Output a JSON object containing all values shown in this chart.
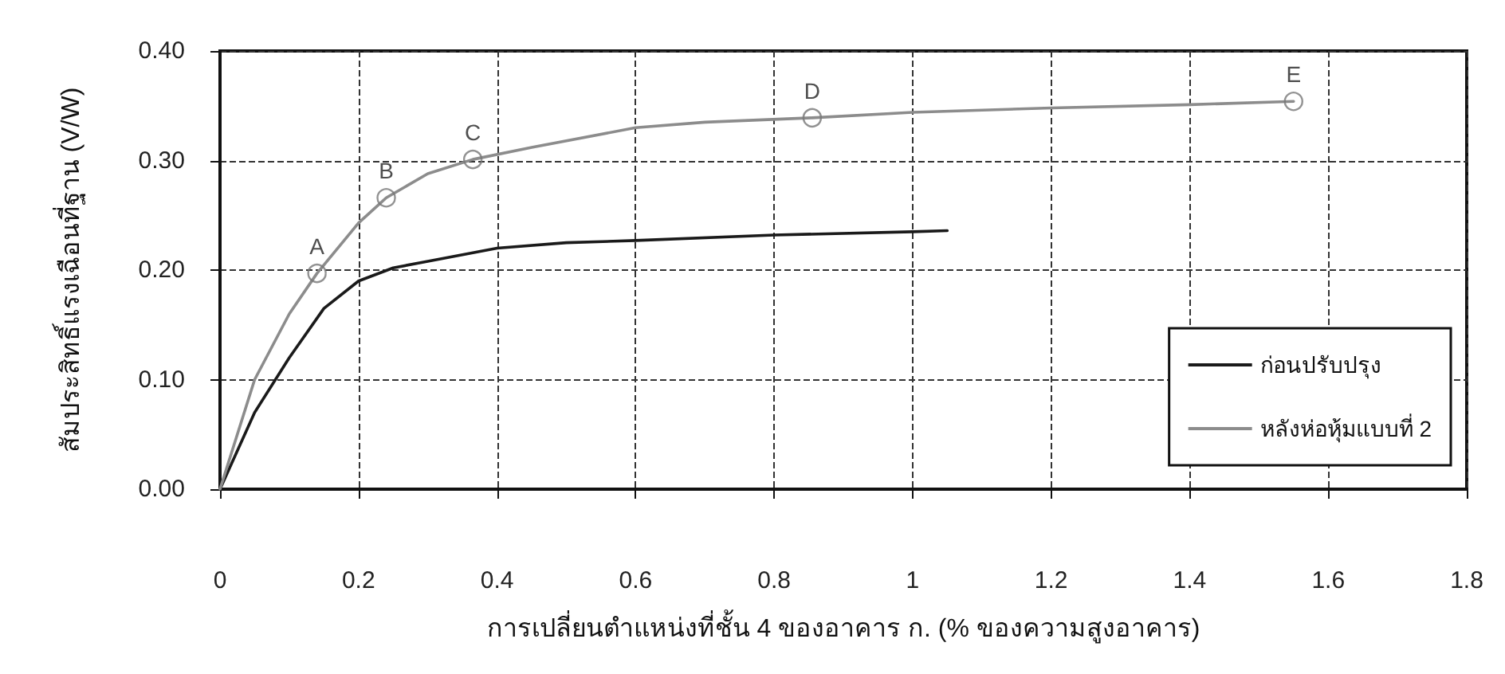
{
  "chart_data": {
    "type": "line",
    "xlabel": "การเปลี่ยนตำแหน่งที่ชั้น 4 ของอาคาร ก. (% ของความสูงอาคาร)",
    "ylabel": "สัมประสิทธิ์แรงเฉือนที่ฐาน (V/W)",
    "xlim": [
      0,
      1.8
    ],
    "xticks": [
      0,
      0.2,
      0.4,
      0.6,
      0.8,
      1,
      1.2,
      1.4,
      1.6,
      1.8
    ],
    "ylim": [
      0,
      0.4
    ],
    "yticks": [
      {
        "value": 0,
        "label": "0.00"
      },
      {
        "value": 0.1,
        "label": "0.10"
      },
      {
        "value": 0.2,
        "label": "0.20"
      },
      {
        "value": 0.3,
        "label": "0.30"
      },
      {
        "value": 0.4,
        "label": "0.40"
      }
    ],
    "grid": true,
    "legend": "bottom right",
    "marker": "none",
    "line_style": "solid",
    "series": [
      {
        "name": "ก่อนปรับปรุง",
        "color": "#1a1a1a",
        "x": [
          0,
          0.05,
          0.1,
          0.15,
          0.2,
          0.25,
          0.3,
          0.4,
          0.5,
          0.6,
          0.8,
          1.0,
          1.05
        ],
        "values": [
          0,
          0.07,
          0.12,
          0.165,
          0.19,
          0.202,
          0.208,
          0.22,
          0.225,
          0.227,
          0.232,
          0.235,
          0.236
        ]
      },
      {
        "name": "หลังห่อหุ้มแบบที่ 2",
        "color": "#8c8c8c",
        "x": [
          0,
          0.05,
          0.1,
          0.14,
          0.2,
          0.24,
          0.3,
          0.365,
          0.45,
          0.6,
          0.7,
          0.855,
          1.0,
          1.2,
          1.4,
          1.55
        ],
        "values": [
          0,
          0.1,
          0.16,
          0.197,
          0.243,
          0.266,
          0.288,
          0.301,
          0.312,
          0.33,
          0.335,
          0.339,
          0.344,
          0.348,
          0.351,
          0.354
        ]
      }
    ],
    "annotations": [
      {
        "text": "A",
        "x": 0.14,
        "y": 0.197
      },
      {
        "text": "B",
        "x": 0.24,
        "y": 0.266
      },
      {
        "text": "C",
        "x": 0.365,
        "y": 0.301
      },
      {
        "text": "D",
        "x": 0.855,
        "y": 0.339
      },
      {
        "text": "E",
        "x": 1.55,
        "y": 0.354
      }
    ]
  }
}
